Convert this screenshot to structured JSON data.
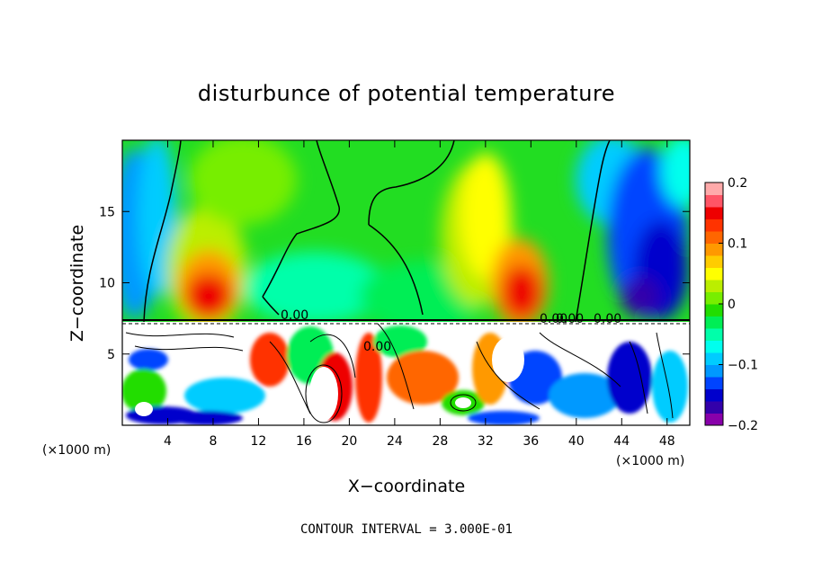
{
  "chart_data": {
    "type": "heatmap",
    "title": "disturbunce of potential temperature",
    "xlabel": "X−coordinate",
    "ylabel": "Z−coordinate",
    "x_unit": "(×1000 m)",
    "x_unit_right": "(×1000 m)",
    "xlim": [
      0,
      50
    ],
    "ylim": [
      0,
      20
    ],
    "x_ticks": [
      4,
      8,
      12,
      16,
      20,
      24,
      28,
      32,
      36,
      40,
      44,
      48
    ],
    "x_tick_labels": [
      "4",
      "8",
      "12",
      "16",
      "20",
      "24",
      "28",
      "32",
      "36",
      "40",
      "44",
      "48"
    ],
    "y_ticks": [
      5,
      10,
      15
    ],
    "y_tick_labels": [
      "5",
      "10",
      "15"
    ],
    "colorbar": {
      "range": [
        -0.2,
        0.2
      ],
      "tick_values": [
        0.2,
        0.1,
        0,
        -0.1,
        -0.2
      ],
      "tick_labels": [
        "0.2",
        "0.1",
        "0",
        "−0.1",
        "−0.2"
      ],
      "colors": [
        "#8800aa",
        "#3300aa",
        "#0000cc",
        "#0044ff",
        "#0099ff",
        "#00ccff",
        "#00ffee",
        "#00ffaa",
        "#00ee55",
        "#22dd00",
        "#77ee00",
        "#bbee00",
        "#ffff00",
        "#ffcc00",
        "#ff9900",
        "#ff6600",
        "#ff3300",
        "#ee0000",
        "#ff5566",
        "#ffaaaa"
      ]
    },
    "contour_labels": [
      "0.00",
      "0.00",
      "0.00",
      "0.00",
      "0.00"
    ],
    "contour_interval_text": "CONTOUR INTERVAL = 3.000E-01"
  }
}
